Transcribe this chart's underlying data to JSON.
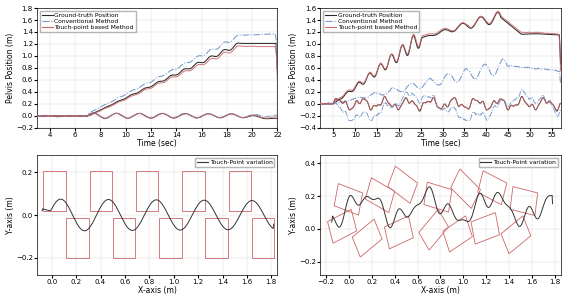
{
  "left_top": {
    "xlabel": "Time (sec)",
    "ylabel": "Pelvis Position (m)",
    "xlim": [
      3,
      22
    ],
    "ylim": [
      -0.2,
      1.8
    ],
    "xticks": [
      4,
      6,
      8,
      10,
      12,
      14,
      16,
      18,
      20,
      22
    ],
    "yticks": [
      -0.2,
      0.0,
      0.2,
      0.4,
      0.6,
      0.8,
      1.0,
      1.2,
      1.4,
      1.6,
      1.8
    ],
    "legend": [
      "Ground-truth Position",
      "Conventional Method",
      "Touch-point based Method"
    ],
    "gt_color": "#2a2a2a",
    "conv_color": "#7799cc",
    "tp_color": "#cc6666"
  },
  "right_top": {
    "xlabel": "Time (sec)",
    "ylabel": "Pelvis Position (m)",
    "xlim": [
      2,
      57
    ],
    "ylim": [
      -0.4,
      1.6
    ],
    "xticks": [
      5,
      10,
      15,
      20,
      25,
      30,
      35,
      40,
      45,
      50,
      55
    ],
    "yticks": [
      -0.4,
      -0.2,
      0.0,
      0.2,
      0.4,
      0.6,
      0.8,
      1.0,
      1.2,
      1.4,
      1.6
    ],
    "legend": [
      "Ground-truth Position",
      "Conventional Method",
      "Touch-point based Method"
    ],
    "gt_color": "#2a2a2a",
    "conv_color": "#7799cc",
    "tp_color": "#cc6666"
  },
  "left_bottom": {
    "xlabel": "X-axis (m)",
    "ylabel": "Y-axis (m)",
    "xlim": [
      -0.12,
      1.85
    ],
    "ylim": [
      -0.28,
      0.28
    ],
    "xticks": [
      0.0,
      0.2,
      0.4,
      0.6,
      0.8,
      1.0,
      1.2,
      1.4,
      1.6,
      1.8
    ],
    "yticks": [
      -0.2,
      0.0,
      0.2
    ],
    "legend": [
      "Touch-Point variation"
    ],
    "rect_color": "#cc6666",
    "trace_color": "#333333"
  },
  "right_bottom": {
    "xlabel": "X-axis (m)",
    "ylabel": "Y-axis (m)",
    "xlim": [
      -0.25,
      1.85
    ],
    "ylim": [
      -0.28,
      0.45
    ],
    "xticks": [
      -0.2,
      0.0,
      0.2,
      0.4,
      0.6,
      0.8,
      1.0,
      1.2,
      1.4,
      1.6,
      1.8
    ],
    "yticks": [
      -0.2,
      0.0,
      0.2,
      0.4
    ],
    "legend": [
      "Touch-Point variation"
    ],
    "rect_color": "#cc6666",
    "trace_color": "#333333"
  },
  "bg_color": "#ffffff",
  "grid_color": "#dddddd",
  "fontsize": 5.5
}
